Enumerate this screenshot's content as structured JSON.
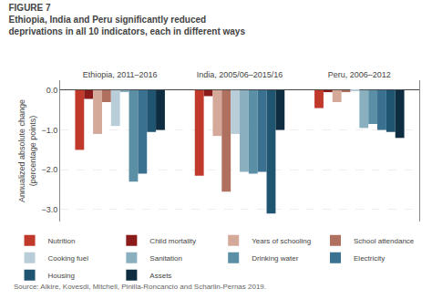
{
  "chart_data": {
    "type": "bar",
    "title": "Ethiopia, India and Peru significantly reduced deprivations in all 10 indicators, each in different ways",
    "annotations": [
      "FIGURE 7",
      "Source: Alkire, Kovesdi, Mitchell, Pinilla-Roncancio and Scharlin-Pernas 2019."
    ],
    "ylabel": "Annualized absolute change (percentage points)",
    "categories": [
      "Ethiopia, 2011–2016",
      "India, 2005/06–2015/16",
      "Peru, 2006–2012"
    ],
    "series": [
      {
        "name": "Nutrition",
        "color": "#c0392b",
        "values": [
          -1.5,
          -2.15,
          -0.45
        ]
      },
      {
        "name": "Child mortality",
        "color": "#8b1a1a",
        "values": [
          -0.22,
          -0.15,
          -0.05
        ]
      },
      {
        "name": "Years of schooling",
        "color": "#d4a99a",
        "values": [
          -1.1,
          -1.15,
          -0.3
        ]
      },
      {
        "name": "School attendance",
        "color": "#b07060",
        "values": [
          -0.3,
          -2.55,
          -0.05
        ]
      },
      {
        "name": "Cooking fuel",
        "color": "#b8cdd8",
        "values": [
          -0.9,
          -1.1,
          -0.02
        ]
      },
      {
        "name": "Sanitation",
        "color": "#8ab0c0",
        "values": [
          -0.05,
          -2.05,
          -0.95
        ]
      },
      {
        "name": "Drinking water",
        "color": "#5a8fa5",
        "values": [
          -2.3,
          -2.1,
          -0.85
        ]
      },
      {
        "name": "Electricity",
        "color": "#3a7090",
        "values": [
          -2.1,
          -2.05,
          -1.0
        ]
      },
      {
        "name": "Housing",
        "color": "#1f5570",
        "values": [
          -1.05,
          -3.1,
          -1.05
        ]
      },
      {
        "name": "Assets",
        "color": "#0f2d40",
        "values": [
          -1.0,
          -1.0,
          -1.2
        ]
      }
    ],
    "ylim": [
      -3.3,
      0.25
    ],
    "yticks": [
      {
        "value": 0.0,
        "label": "0.0"
      },
      {
        "value": -1.0,
        "label": "−1.0"
      },
      {
        "value": -2.0,
        "label": "−2.0"
      },
      {
        "value": -3.0,
        "label": "−3.0"
      }
    ],
    "grid": true,
    "legend": "bottom"
  }
}
